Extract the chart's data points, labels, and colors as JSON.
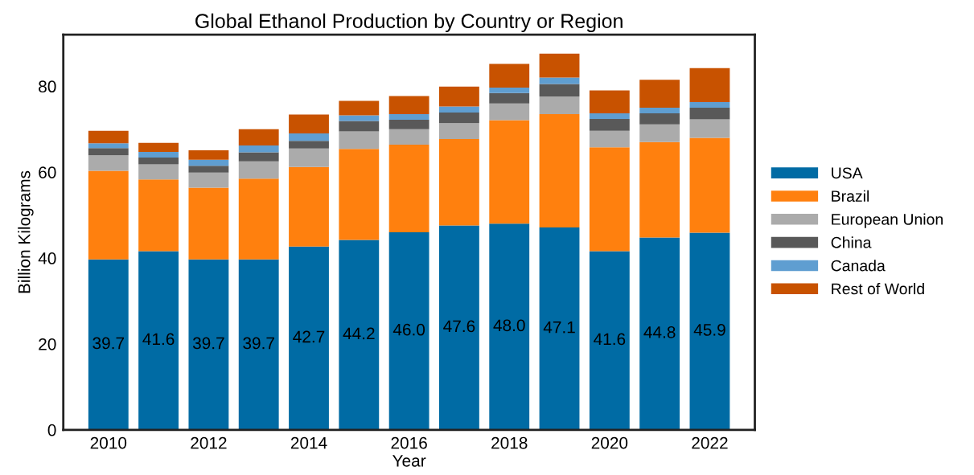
{
  "chart_data": {
    "type": "bar",
    "stacked": true,
    "title": "Global Ethanol Production by Country or Region",
    "xlabel": "Year",
    "ylabel": "Billion Kilograms",
    "x": [
      2010,
      2011,
      2012,
      2013,
      2014,
      2015,
      2016,
      2017,
      2018,
      2019,
      2020,
      2021,
      2022
    ],
    "series": [
      {
        "name": "USA",
        "color": "#006ba4",
        "values": [
          39.7,
          41.6,
          39.7,
          39.7,
          42.7,
          44.2,
          46.0,
          47.6,
          48.0,
          47.1,
          41.6,
          44.8,
          45.9
        ],
        "value_labels": [
          "39.7",
          "41.6",
          "39.7",
          "39.7",
          "42.7",
          "44.2",
          "46.0",
          "47.6",
          "48.0",
          "47.1",
          "41.6",
          "44.8",
          "45.9"
        ]
      },
      {
        "name": "Brazil",
        "color": "#ff800e",
        "values": [
          20.6,
          16.7,
          16.7,
          18.8,
          18.5,
          21.2,
          20.4,
          20.1,
          24.1,
          26.4,
          24.2,
          22.2,
          22.1
        ]
      },
      {
        "name": "European Union",
        "color": "#ababab",
        "values": [
          3.6,
          3.5,
          3.5,
          4.0,
          4.3,
          4.1,
          3.6,
          3.7,
          3.9,
          4.1,
          3.8,
          4.1,
          4.3
        ]
      },
      {
        "name": "China",
        "color": "#595959",
        "values": [
          1.7,
          1.6,
          1.6,
          2.1,
          1.8,
          2.4,
          2.2,
          2.5,
          2.4,
          2.9,
          2.8,
          2.6,
          2.7
        ]
      },
      {
        "name": "Canada",
        "color": "#5f9ed1",
        "values": [
          1.1,
          1.3,
          1.4,
          1.6,
          1.7,
          1.3,
          1.3,
          1.4,
          1.3,
          1.5,
          1.3,
          1.3,
          1.3
        ]
      },
      {
        "name": "Rest of World",
        "color": "#c85200",
        "values": [
          2.9,
          2.1,
          2.2,
          3.8,
          4.4,
          3.4,
          4.2,
          4.6,
          5.5,
          5.6,
          5.3,
          6.5,
          7.9
        ]
      }
    ],
    "xlim": [
      2009.1,
      2022.9
    ],
    "xticks": [
      2010,
      2012,
      2014,
      2016,
      2018,
      2020,
      2022
    ],
    "ylim": [
      0,
      92
    ],
    "yticks": [
      0,
      20,
      40,
      60,
      80
    ],
    "grid": false,
    "legend": "right"
  }
}
